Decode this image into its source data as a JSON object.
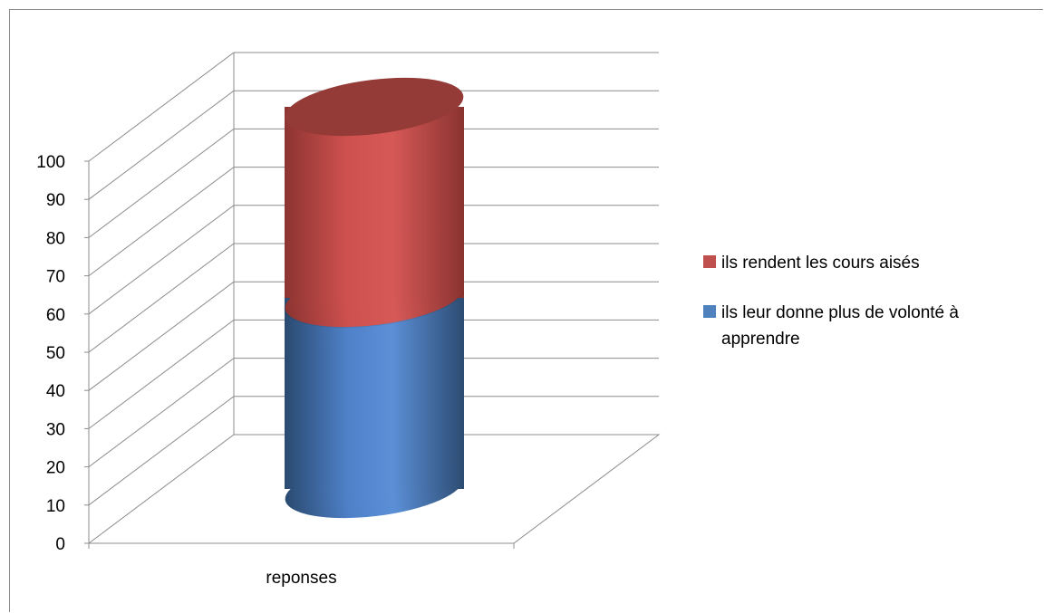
{
  "chart_data": {
    "type": "bar",
    "title": "",
    "xlabel": "",
    "ylabel": "",
    "ylim": [
      0,
      100
    ],
    "yticks": [
      0,
      10,
      20,
      30,
      40,
      50,
      60,
      70,
      80,
      90,
      100
    ],
    "categories": [
      "reponses"
    ],
    "stacked": true,
    "series": [
      {
        "name": "ils leur donne plus de volonté à apprendre",
        "values": [
          50
        ],
        "color": "#4f81bd"
      },
      {
        "name": "ils rendent les cours aisés",
        "values": [
          50
        ],
        "color": "#c0504d"
      }
    ],
    "legend_order": [
      1,
      0
    ],
    "legend_position": "right",
    "grid": true,
    "style": "3d-cylinder"
  }
}
